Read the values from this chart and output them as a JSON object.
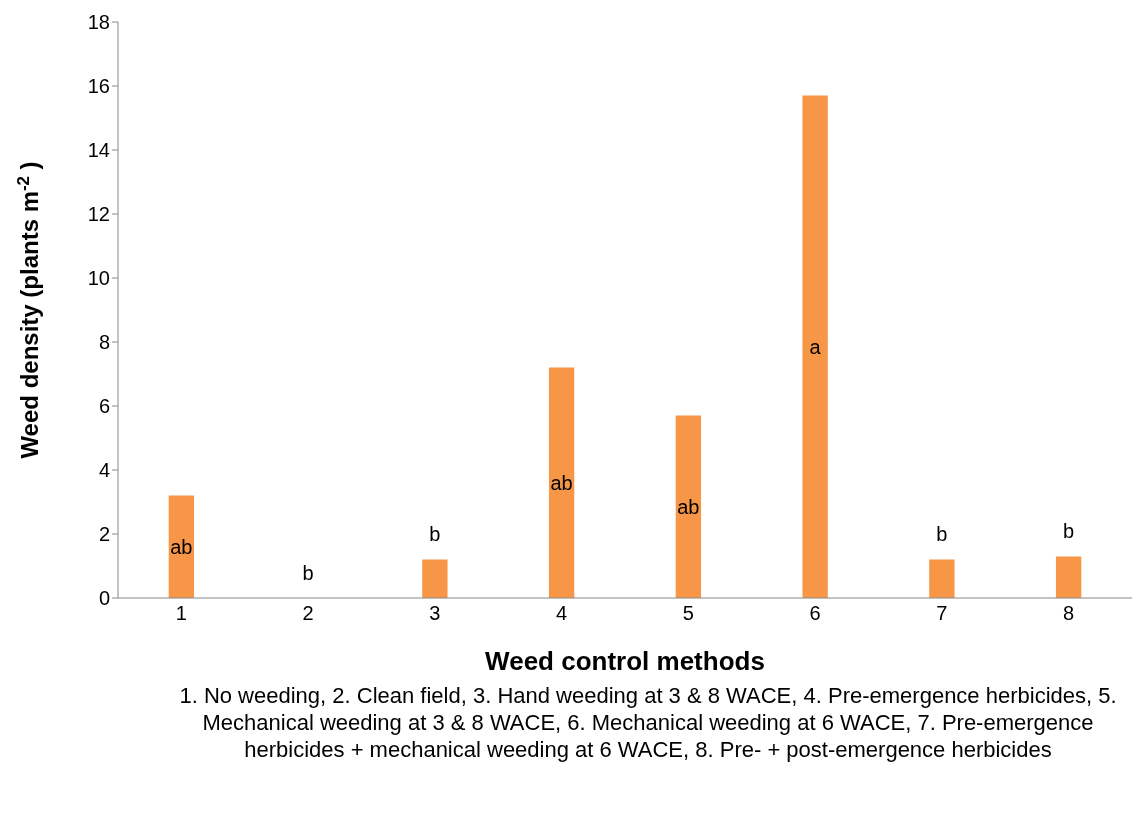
{
  "chart_data": {
    "type": "bar",
    "xlabel": "Weed control methods",
    "ylabel": "Weed density (plants m$^{-2}$)",
    "categories": [
      "1",
      "2",
      "3",
      "4",
      "5",
      "6",
      "7",
      "8"
    ],
    "values": [
      3.2,
      0,
      1.2,
      7.2,
      5.7,
      15.7,
      1.2,
      1.3
    ],
    "color": "#f79646",
    "ylim": [
      0,
      18
    ],
    "yticks": [
      0,
      2,
      4,
      6,
      8,
      10,
      12,
      14,
      16,
      18
    ],
    "grid": false,
    "legend": false,
    "annotations": [
      "ab",
      "b",
      "b",
      "ab",
      "ab",
      "a",
      "b",
      "b",
      "1. No weeding, 2. Clean field, 3. Hand weeding at 3 & 8 WACE, 4. Pre-emergence herbicides, 5.  Mechanical weeding at 3 & 8 WACE, 6. Mechanical weeding at 6 WACE, 7. Pre-emergence herbicides + mechanical weeding at 6 WACE, 8. Pre- + post-emergence herbicides"
    ]
  }
}
